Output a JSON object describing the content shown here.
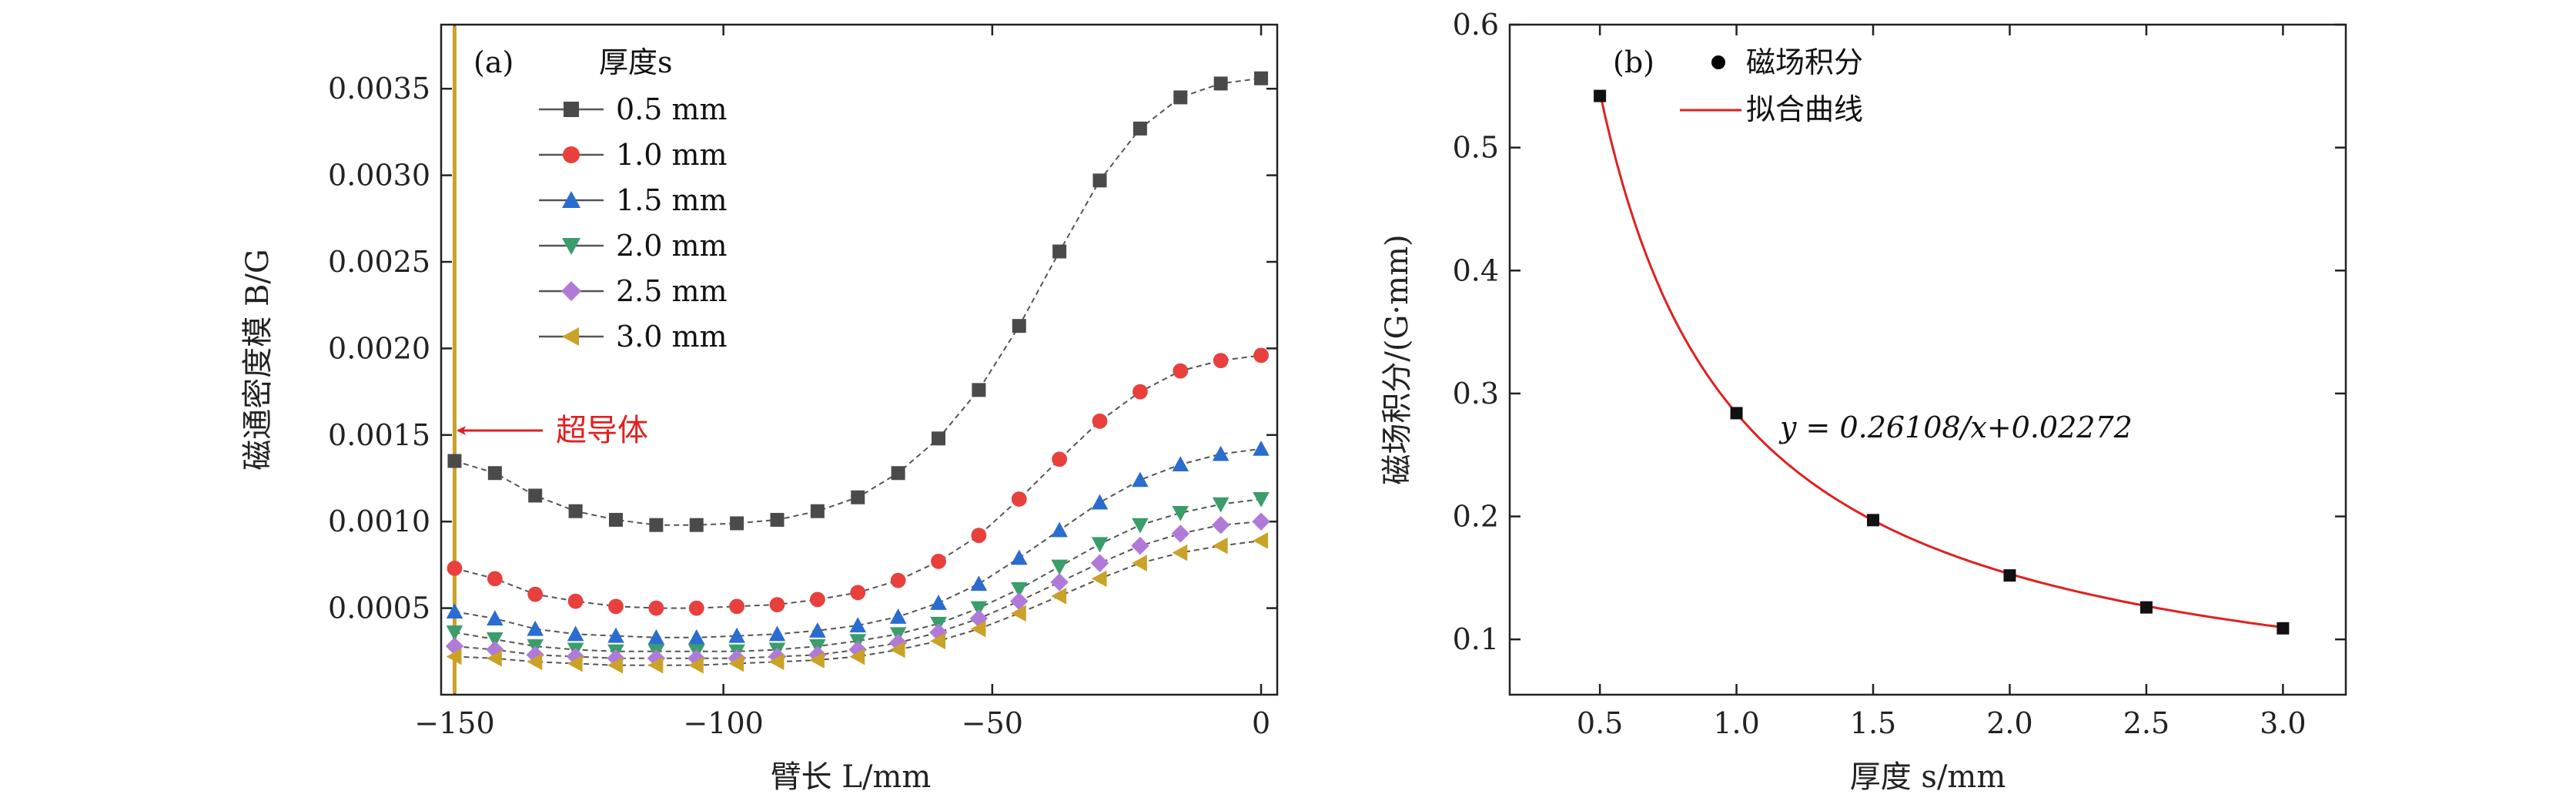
{
  "chart_data": [
    {
      "panel": "(a)",
      "type": "line",
      "xlabel": "臂长 L/mm",
      "ylabel": "磁通密度模 B/G",
      "xlim": [
        -152.5,
        3
      ],
      "ylim": [
        0,
        0.00387
      ],
      "xticks": [
        "−150",
        "−100",
        "−50",
        "0"
      ],
      "xtick_values": [
        -150,
        -100,
        -50,
        0
      ],
      "yticks": [
        "0.0005",
        "0.0010",
        "0.0015",
        "0.0020",
        "0.0025",
        "0.0030",
        "0.0035"
      ],
      "ytick_values": [
        0.0005,
        0.001,
        0.0015,
        0.002,
        0.0025,
        0.003,
        0.0035
      ],
      "legend_title": "厚度s",
      "annotation": "超导体",
      "superconductor_x": -150,
      "x": [
        -150,
        -142.5,
        -135,
        -127.5,
        -120,
        -112.5,
        -105,
        -97.5,
        -90,
        -82.5,
        -75,
        -67.5,
        -60,
        -52.5,
        -45,
        -37.5,
        -30,
        -22.5,
        -15,
        -7.5,
        0
      ],
      "series": [
        {
          "name": "0.5 mm",
          "color": "#4a4a4a",
          "marker": "square",
          "values": [
            0.00135,
            0.00128,
            0.00115,
            0.00106,
            0.00101,
            0.00098,
            0.00098,
            0.00099,
            0.00101,
            0.00106,
            0.00114,
            0.00128,
            0.00148,
            0.00176,
            0.00213,
            0.00256,
            0.00297,
            0.00327,
            0.00345,
            0.00353,
            0.00356
          ]
        },
        {
          "name": "1.0 mm",
          "color": "#e8403d",
          "marker": "circle",
          "values": [
            0.00073,
            0.00067,
            0.00058,
            0.00054,
            0.00051,
            0.0005,
            0.0005,
            0.00051,
            0.00052,
            0.00055,
            0.00059,
            0.00066,
            0.00077,
            0.00092,
            0.00113,
            0.00136,
            0.00158,
            0.00175,
            0.00187,
            0.00193,
            0.00196
          ]
        },
        {
          "name": "1.5 mm",
          "color": "#2a6ccf",
          "marker": "triangle-up",
          "values": [
            0.00048,
            0.00044,
            0.00038,
            0.00035,
            0.00034,
            0.00033,
            0.00033,
            0.00034,
            0.00035,
            0.00037,
            0.0004,
            0.00045,
            0.00053,
            0.00064,
            0.00079,
            0.00095,
            0.00111,
            0.00124,
            0.00133,
            0.00139,
            0.00142
          ]
        },
        {
          "name": "2.0 mm",
          "color": "#3a9d6a",
          "marker": "triangle-down",
          "values": [
            0.00036,
            0.00032,
            0.00028,
            0.00026,
            0.00025,
            0.00025,
            0.00025,
            0.00025,
            0.00026,
            0.00028,
            0.00031,
            0.00035,
            0.00041,
            0.0005,
            0.00061,
            0.00074,
            0.00087,
            0.00098,
            0.00105,
            0.0011,
            0.00113
          ]
        },
        {
          "name": "2.5 mm",
          "color": "#b07ad8",
          "marker": "diamond",
          "values": [
            0.00028,
            0.00026,
            0.00023,
            0.00022,
            0.00021,
            0.00021,
            0.00021,
            0.00021,
            0.00022,
            0.00023,
            0.00026,
            0.0003,
            0.00036,
            0.00044,
            0.00054,
            0.00065,
            0.00076,
            0.00086,
            0.00093,
            0.00098,
            0.001
          ]
        },
        {
          "name": "3.0 mm",
          "color": "#c9a227",
          "marker": "triangle-left",
          "values": [
            0.00022,
            0.00021,
            0.00019,
            0.00018,
            0.00017,
            0.00017,
            0.00017,
            0.00018,
            0.00019,
            0.0002,
            0.00022,
            0.00026,
            0.00031,
            0.00038,
            0.00047,
            0.00057,
            0.00067,
            0.00076,
            0.00082,
            0.00086,
            0.00089
          ]
        }
      ]
    },
    {
      "panel": "(b)",
      "type": "scatter",
      "xlabel": "厚度 s/mm",
      "ylabel": "磁场积分/(G·mm)",
      "xlim": [
        0.17,
        3.23
      ],
      "ylim": [
        0.055,
        0.6
      ],
      "xticks": [
        "0.5",
        "1.0",
        "1.5",
        "2.0",
        "2.5",
        "3.0"
      ],
      "xtick_values": [
        0.5,
        1.0,
        1.5,
        2.0,
        2.5,
        3.0
      ],
      "yticks": [
        "0.1",
        "0.2",
        "0.3",
        "0.4",
        "0.5",
        "0.6"
      ],
      "ytick_values": [
        0.1,
        0.2,
        0.3,
        0.4,
        0.5,
        0.6
      ],
      "legend": [
        {
          "label": "磁场积分",
          "marker": "circle",
          "color": "#000000"
        },
        {
          "label": "拟合曲线",
          "marker": "line",
          "color": "#e02020"
        }
      ],
      "points": {
        "x": [
          0.5,
          1.0,
          1.5,
          2.0,
          2.5,
          3.0
        ],
        "y": [
          0.542,
          0.284,
          0.197,
          0.152,
          0.126,
          0.109
        ]
      },
      "fit": {
        "a": 0.26108,
        "b": 0.02272,
        "x_range": [
          0.5,
          3.0
        ]
      },
      "equation": "y = 0.26108/x+0.02272"
    }
  ]
}
